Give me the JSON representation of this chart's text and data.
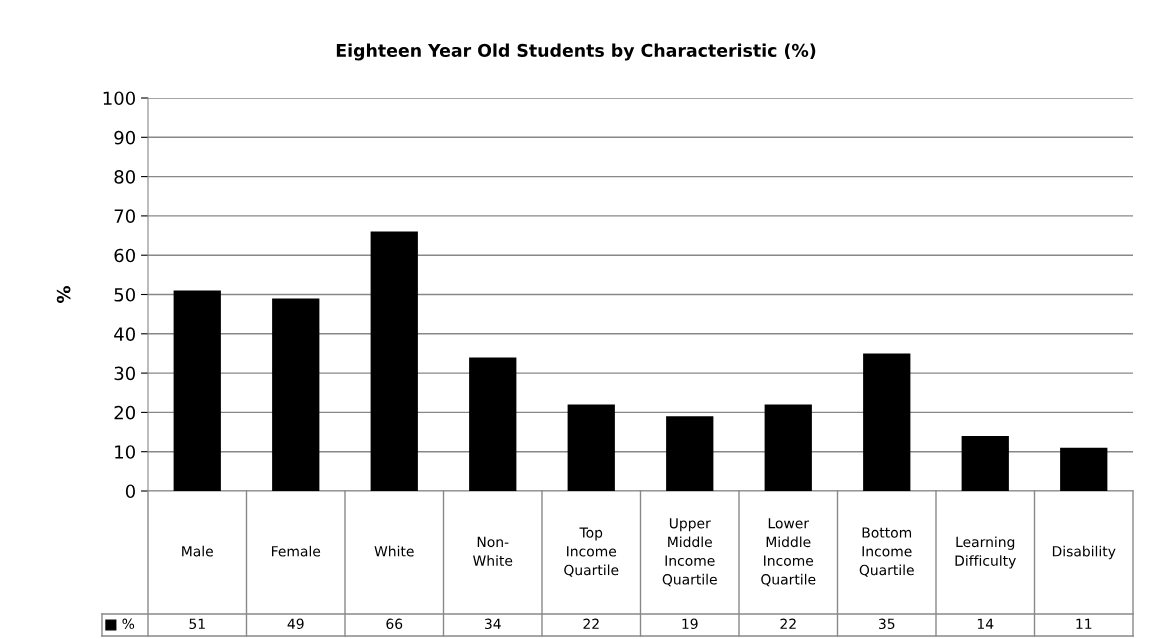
{
  "chart_data": {
    "type": "bar",
    "title": "Eighteen Year Old Students by Characteristic (%)",
    "ylabel": "%",
    "categories": [
      "Male",
      "Female",
      "White",
      "Non-White",
      "Top Income Quartile",
      "Upper Middle Income Quartile",
      "Lower Middle Income Quartile",
      "Bottom Income Quartile",
      "Learning Difficulty",
      "Disability"
    ],
    "series": [
      {
        "name": "%",
        "color": "#000000",
        "values": [
          51,
          49,
          66,
          34,
          22,
          19,
          22,
          35,
          14,
          11
        ]
      }
    ],
    "data_labels": true,
    "ylim": [
      0,
      100
    ],
    "yticks": [
      0,
      10,
      20,
      30,
      40,
      50,
      60,
      70,
      80,
      90,
      100
    ],
    "grid": "y"
  }
}
